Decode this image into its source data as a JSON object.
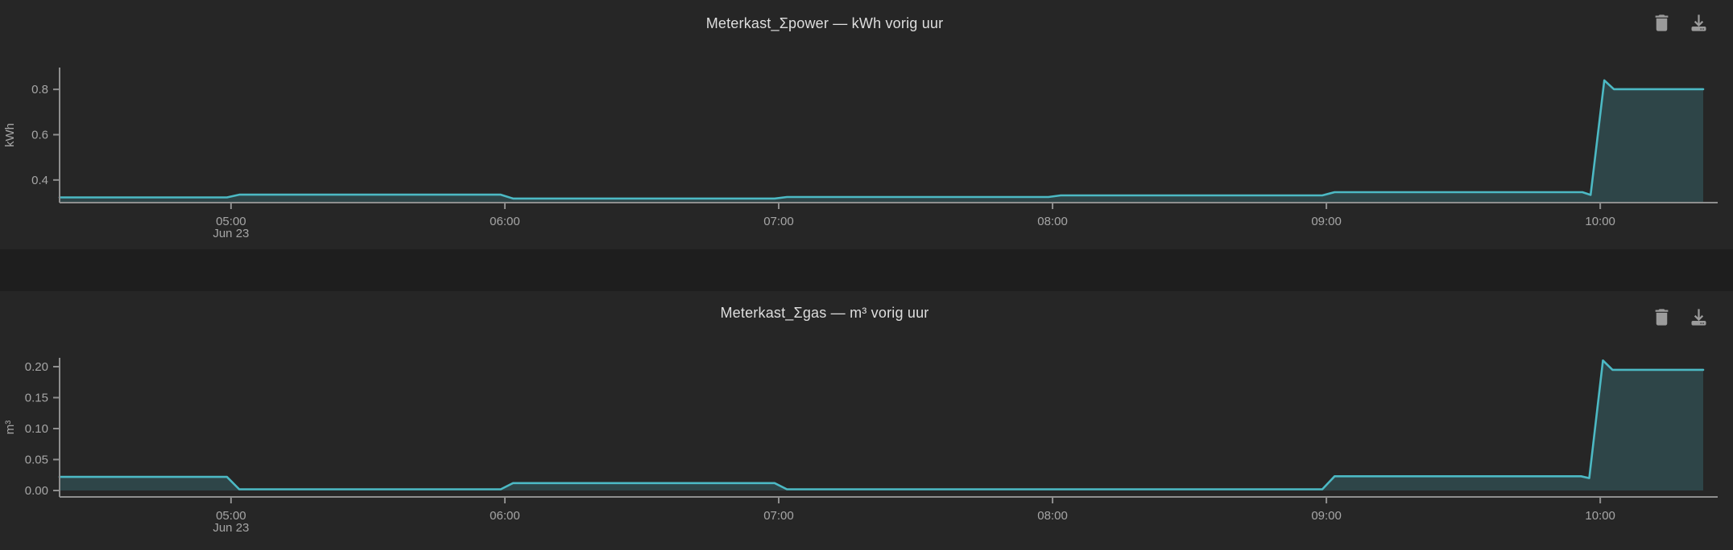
{
  "page": {
    "background": "#1e1e1e",
    "panel_background": "#262626"
  },
  "panels": [
    {
      "title": "Meterkast_Σpower — kWh vorig uur",
      "icons": [
        "trash-icon",
        "download-icon"
      ]
    },
    {
      "title": "Meterkast_Σgas — m³ vorig uur",
      "icons": [
        "trash-icon",
        "download-icon"
      ]
    }
  ],
  "colors": {
    "line": "#4cb9c4",
    "fill": "rgba(77,184,195,0.22)",
    "axis": "#8f8f8f",
    "tick_label": "#a6a6a6",
    "title": "#dedede",
    "icon": "#9b9b9b"
  },
  "chart_data": [
    {
      "type": "area",
      "title": "Meterkast_Σpower — kWh vorig uur",
      "xlabel": "",
      "ylabel": "kWh",
      "grid": false,
      "legend": false,
      "x_range": [
        4.374,
        10.376
      ],
      "y_range": [
        0.3,
        0.8964
      ],
      "x_ticks": [
        {
          "v": 5,
          "label": "05:00",
          "sub": "Jun 23"
        },
        {
          "v": 6,
          "label": "06:00"
        },
        {
          "v": 7,
          "label": "07:00"
        },
        {
          "v": 8,
          "label": "08:00"
        },
        {
          "v": 9,
          "label": "09:00"
        },
        {
          "v": 10,
          "label": "10:00"
        }
      ],
      "y_ticks": [
        {
          "v": 0.4,
          "label": "0.4"
        },
        {
          "v": 0.6,
          "label": "0.6"
        },
        {
          "v": 0.8,
          "label": "0.8"
        }
      ],
      "hourly_values_kwh": {
        "04:00": 0.323,
        "05:00": 0.335,
        "06:00": 0.318,
        "07:00": 0.325,
        "08:00": 0.332,
        "09:00": 0.346,
        "10:00": 0.801
      },
      "points": [
        [
          4.374,
          0.323
        ],
        [
          4.985,
          0.323
        ],
        [
          5.03,
          0.335
        ],
        [
          5.985,
          0.335
        ],
        [
          6.03,
          0.318
        ],
        [
          6.985,
          0.318
        ],
        [
          7.03,
          0.325
        ],
        [
          7.985,
          0.325
        ],
        [
          8.03,
          0.332
        ],
        [
          8.985,
          0.332
        ],
        [
          9.03,
          0.346
        ],
        [
          9.935,
          0.346
        ],
        [
          9.965,
          0.334
        ],
        [
          10.015,
          0.84
        ],
        [
          10.05,
          0.801
        ],
        [
          10.376,
          0.801
        ]
      ],
      "line_color": "#4cb9c4",
      "fill_color": "rgba(77,184,195,0.22)"
    },
    {
      "type": "area",
      "title": "Meterkast_Σgas — m³ vorig uur",
      "xlabel": "",
      "ylabel": "m³",
      "grid": false,
      "legend": false,
      "x_range": [
        4.374,
        10.376
      ],
      "y_range": [
        -0.0104,
        0.2143
      ],
      "x_ticks": [
        {
          "v": 5,
          "label": "05:00",
          "sub": "Jun 23"
        },
        {
          "v": 6,
          "label": "06:00"
        },
        {
          "v": 7,
          "label": "07:00"
        },
        {
          "v": 8,
          "label": "08:00"
        },
        {
          "v": 9,
          "label": "09:00"
        },
        {
          "v": 10,
          "label": "10:00"
        }
      ],
      "y_ticks": [
        {
          "v": 0.0,
          "label": "0.00"
        },
        {
          "v": 0.05,
          "label": "0.05"
        },
        {
          "v": 0.1,
          "label": "0.10"
        },
        {
          "v": 0.15,
          "label": "0.15"
        },
        {
          "v": 0.2,
          "label": "0.20"
        }
      ],
      "hourly_values_m3": {
        "04:00": 0.022,
        "05:00": 0.002,
        "06:00": 0.012,
        "07:00": 0.002,
        "08:00": 0.002,
        "09:00": 0.023,
        "10:00": 0.195
      },
      "points": [
        [
          4.374,
          0.022
        ],
        [
          4.985,
          0.022
        ],
        [
          5.03,
          0.002
        ],
        [
          5.985,
          0.002
        ],
        [
          6.03,
          0.012
        ],
        [
          6.985,
          0.012
        ],
        [
          7.03,
          0.002
        ],
        [
          8.985,
          0.002
        ],
        [
          9.03,
          0.023
        ],
        [
          9.93,
          0.023
        ],
        [
          9.96,
          0.02
        ],
        [
          10.01,
          0.21
        ],
        [
          10.045,
          0.195
        ],
        [
          10.376,
          0.195
        ]
      ],
      "line_color": "#4cb9c4",
      "fill_color": "rgba(77,184,195,0.22)"
    }
  ]
}
